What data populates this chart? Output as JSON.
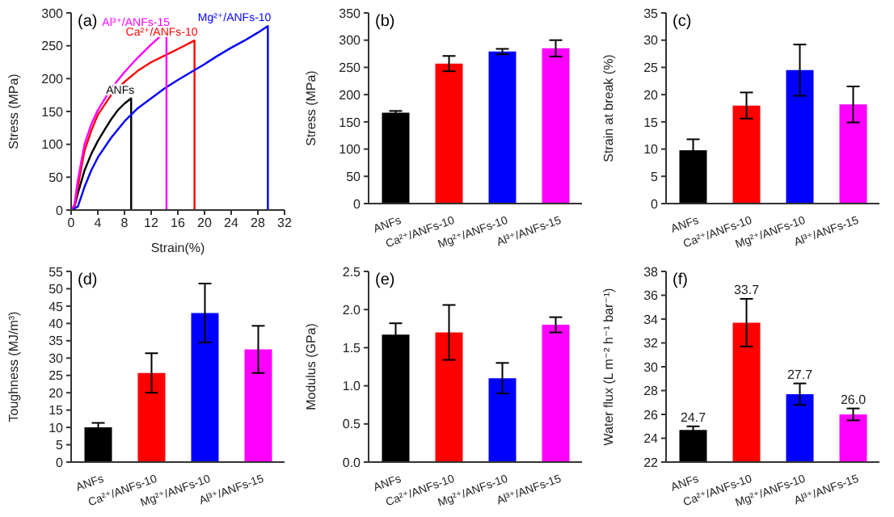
{
  "chart_data": [
    {
      "type": "line",
      "xlabel": "Strain(%)",
      "ylabel": "Stress (MPa)",
      "annotations": [
        "(a)"
      ],
      "xlim": [
        0,
        32
      ],
      "xticks": [
        0,
        4,
        8,
        12,
        16,
        20,
        24,
        28,
        32
      ],
      "ylim": [
        0,
        300
      ],
      "yticks": [
        0,
        50,
        100,
        150,
        200,
        250,
        300
      ],
      "marker": "none",
      "legend": false,
      "series": [
        {
          "name": "ANFs",
          "color": "#000000",
          "x": [
            0,
            0.5,
            1,
            2,
            3,
            4,
            5,
            6,
            7,
            8,
            9,
            9
          ],
          "values": [
            0,
            5,
            25,
            60,
            85,
            105,
            122,
            138,
            152,
            162,
            170,
            0
          ]
        },
        {
          "name": "Ca²⁺/ANFs-10",
          "color": "#ff0000",
          "x": [
            0,
            0.5,
            1,
            2,
            3,
            4,
            6,
            8,
            10,
            12,
            14,
            16,
            18.5,
            18.5
          ],
          "values": [
            0,
            5,
            35,
            90,
            120,
            145,
            175,
            195,
            212,
            225,
            235,
            245,
            258,
            0
          ]
        },
        {
          "name": "Mg²⁺/ANFs-10",
          "color": "#0000ff",
          "x": [
            0,
            1,
            2,
            3,
            4,
            6,
            8,
            10,
            12,
            14,
            16,
            18,
            20,
            22,
            24,
            26,
            28,
            29.5,
            29.5
          ],
          "values": [
            0,
            5,
            35,
            60,
            80,
            110,
            135,
            155,
            170,
            185,
            198,
            210,
            222,
            235,
            247,
            258,
            270,
            280,
            0
          ]
        },
        {
          "name": "Al³⁺/ANFs-15",
          "color": "#ff00ff",
          "x": [
            0,
            0.5,
            1,
            2,
            3,
            4,
            6,
            8,
            10,
            12,
            14.3,
            14.3
          ],
          "values": [
            0,
            8,
            45,
            100,
            130,
            152,
            185,
            210,
            232,
            252,
            273,
            0
          ]
        }
      ]
    },
    {
      "type": "bar",
      "ylabel": "Stress (MPa)",
      "annotations": [
        "(b)"
      ],
      "categories": [
        "ANFs",
        "Ca²⁺/ANFs-10",
        "Mg²⁺/ANFs-10",
        "Al³⁺/ANFs-15"
      ],
      "colors": [
        "#000000",
        "#ff0000",
        "#0000ff",
        "#ff00ff"
      ],
      "values": [
        167,
        257,
        279,
        285
      ],
      "errors": [
        3,
        14,
        5,
        15
      ],
      "ylim": [
        0,
        350
      ],
      "yticks": [
        0,
        50,
        100,
        150,
        200,
        250,
        300,
        350
      ]
    },
    {
      "type": "bar",
      "ylabel": "Strain at break (%)",
      "annotations": [
        "(c)"
      ],
      "categories": [
        "ANFs",
        "Ca²⁺/ANFs-10",
        "Mg²⁺/ANFs-10",
        "Al³⁺/ANFs-15"
      ],
      "colors": [
        "#000000",
        "#ff0000",
        "#0000ff",
        "#ff00ff"
      ],
      "values": [
        9.8,
        18,
        24.5,
        18.2
      ],
      "errors": [
        2,
        2.4,
        4.7,
        3.3
      ],
      "ylim": [
        0,
        35
      ],
      "yticks": [
        0,
        5,
        10,
        15,
        20,
        25,
        30,
        35
      ]
    },
    {
      "type": "bar",
      "ylabel": "Toughness (MJ/m³)",
      "annotations": [
        "(d)"
      ],
      "categories": [
        "ANFs",
        "Ca²⁺/ANFs-10",
        "Mg²⁺/ANFs-10",
        "Al³⁺/ANFs-15"
      ],
      "colors": [
        "#000000",
        "#ff0000",
        "#0000ff",
        "#ff00ff"
      ],
      "values": [
        10,
        25.7,
        43,
        32.5
      ],
      "errors": [
        1.3,
        5.7,
        8.5,
        6.8
      ],
      "ylim": [
        0,
        55
      ],
      "yticks": [
        0,
        5,
        10,
        15,
        20,
        25,
        30,
        35,
        40,
        45,
        50,
        55
      ]
    },
    {
      "type": "bar",
      "ylabel": "Modulus (GPa)",
      "annotations": [
        "(e)"
      ],
      "categories": [
        "ANFs",
        "Ca²⁺/ANFs-10",
        "Mg²⁺/ANFs-10",
        "Al³⁺/ANFs-15"
      ],
      "colors": [
        "#000000",
        "#ff0000",
        "#0000ff",
        "#ff00ff"
      ],
      "values": [
        1.67,
        1.7,
        1.1,
        1.8
      ],
      "errors": [
        0.15,
        0.36,
        0.2,
        0.1
      ],
      "ylim": [
        0,
        2.5
      ],
      "yticks": [
        {
          "value": 0,
          "label": "0.0"
        },
        {
          "value": 0.5,
          "label": "0.5"
        },
        {
          "value": 1,
          "label": "1.0"
        },
        {
          "value": 1.5,
          "label": "1.5"
        },
        {
          "value": 2,
          "label": "2.0"
        },
        {
          "value": 2.5,
          "label": "2.5"
        }
      ]
    },
    {
      "type": "bar",
      "ylabel": "Water flux (L m⁻² h⁻¹ bar⁻¹)",
      "annotations": [
        "(f)"
      ],
      "categories": [
        "ANFs",
        "Ca²⁺/ANFs-10",
        "Mg²⁺/ANFs-10",
        "Al³⁺/ANFs-15"
      ],
      "colors": [
        "#000000",
        "#ff0000",
        "#0000ff",
        "#ff00ff"
      ],
      "values": [
        24.7,
        33.7,
        27.7,
        26.0
      ],
      "value_labels": [
        "24.7",
        "33.7",
        "27.7",
        "26.0"
      ],
      "errors": [
        0.3,
        2.0,
        0.9,
        0.5
      ],
      "ylim": [
        22,
        38
      ],
      "yticks": [
        22,
        24,
        26,
        28,
        30,
        32,
        34,
        36,
        38
      ]
    }
  ]
}
